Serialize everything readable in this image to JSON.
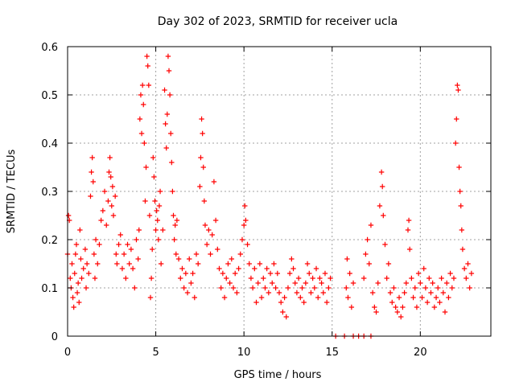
{
  "chart_data": {
    "type": "scatter",
    "title": "Day 302 of 2023, SRMTID for receiver ucla",
    "xlabel": "GPS time / hours",
    "ylabel": "SRMTID / TECUs",
    "xlim": [
      0,
      24
    ],
    "ylim": [
      0,
      0.6
    ],
    "xticks": [
      "0",
      "5",
      "10",
      "15",
      "20"
    ],
    "xtick_values": [
      0,
      5,
      10,
      15,
      20
    ],
    "yticks": [
      "0",
      "0.1",
      "0.2",
      "0.3",
      "0.4",
      "0.5",
      "0.6"
    ],
    "ytick_values": [
      0,
      0.1,
      0.2,
      0.3,
      0.4,
      0.5,
      0.6
    ],
    "grid": true,
    "marker": "+",
    "color": "#ff0000",
    "series": [
      {
        "name": "SRMTID",
        "points": [
          [
            0.0,
            0.17
          ],
          [
            0.05,
            0.25
          ],
          [
            0.1,
            0.24
          ],
          [
            0.15,
            0.12
          ],
          [
            0.2,
            0.1
          ],
          [
            0.25,
            0.15
          ],
          [
            0.3,
            0.08
          ],
          [
            0.35,
            0.06
          ],
          [
            0.4,
            0.13
          ],
          [
            0.45,
            0.17
          ],
          [
            0.5,
            0.19
          ],
          [
            0.55,
            0.09
          ],
          [
            0.6,
            0.11
          ],
          [
            0.65,
            0.07
          ],
          [
            0.7,
            0.22
          ],
          [
            0.75,
            0.16
          ],
          [
            0.8,
            0.12
          ],
          [
            0.9,
            0.14
          ],
          [
            1.0,
            0.18
          ],
          [
            1.05,
            0.1
          ],
          [
            1.1,
            0.15
          ],
          [
            1.2,
            0.13
          ],
          [
            1.3,
            0.29
          ],
          [
            1.35,
            0.34
          ],
          [
            1.4,
            0.37
          ],
          [
            1.45,
            0.32
          ],
          [
            1.5,
            0.17
          ],
          [
            1.55,
            0.12
          ],
          [
            1.6,
            0.2
          ],
          [
            1.7,
            0.15
          ],
          [
            1.8,
            0.19
          ],
          [
            1.9,
            0.24
          ],
          [
            2.0,
            0.26
          ],
          [
            2.1,
            0.3
          ],
          [
            2.2,
            0.23
          ],
          [
            2.3,
            0.28
          ],
          [
            2.35,
            0.34
          ],
          [
            2.4,
            0.37
          ],
          [
            2.45,
            0.33
          ],
          [
            2.5,
            0.27
          ],
          [
            2.55,
            0.31
          ],
          [
            2.6,
            0.25
          ],
          [
            2.7,
            0.29
          ],
          [
            2.75,
            0.17
          ],
          [
            2.8,
            0.15
          ],
          [
            2.9,
            0.19
          ],
          [
            3.0,
            0.21
          ],
          [
            3.1,
            0.14
          ],
          [
            3.2,
            0.17
          ],
          [
            3.3,
            0.12
          ],
          [
            3.4,
            0.19
          ],
          [
            3.5,
            0.15
          ],
          [
            3.6,
            0.18
          ],
          [
            3.7,
            0.14
          ],
          [
            3.8,
            0.1
          ],
          [
            3.9,
            0.2
          ],
          [
            4.0,
            0.16
          ],
          [
            4.05,
            0.22
          ],
          [
            4.1,
            0.45
          ],
          [
            4.15,
            0.5
          ],
          [
            4.2,
            0.42
          ],
          [
            4.25,
            0.52
          ],
          [
            4.3,
            0.48
          ],
          [
            4.35,
            0.4
          ],
          [
            4.4,
            0.28
          ],
          [
            4.45,
            0.35
          ],
          [
            4.5,
            0.58
          ],
          [
            4.55,
            0.56
          ],
          [
            4.6,
            0.52
          ],
          [
            4.65,
            0.25
          ],
          [
            4.7,
            0.08
          ],
          [
            4.75,
            0.12
          ],
          [
            4.8,
            0.18
          ],
          [
            4.85,
            0.37
          ],
          [
            4.9,
            0.33
          ],
          [
            4.95,
            0.28
          ],
          [
            5.0,
            0.22
          ],
          [
            5.05,
            0.26
          ],
          [
            5.1,
            0.24
          ],
          [
            5.15,
            0.2
          ],
          [
            5.2,
            0.27
          ],
          [
            5.25,
            0.3
          ],
          [
            5.3,
            0.15
          ],
          [
            5.4,
            0.22
          ],
          [
            5.5,
            0.51
          ],
          [
            5.55,
            0.44
          ],
          [
            5.6,
            0.39
          ],
          [
            5.65,
            0.46
          ],
          [
            5.7,
            0.58
          ],
          [
            5.75,
            0.55
          ],
          [
            5.8,
            0.5
          ],
          [
            5.85,
            0.42
          ],
          [
            5.9,
            0.36
          ],
          [
            5.95,
            0.3
          ],
          [
            6.0,
            0.25
          ],
          [
            6.05,
            0.2
          ],
          [
            6.1,
            0.23
          ],
          [
            6.15,
            0.17
          ],
          [
            6.2,
            0.24
          ],
          [
            6.3,
            0.16
          ],
          [
            6.4,
            0.12
          ],
          [
            6.5,
            0.14
          ],
          [
            6.6,
            0.1
          ],
          [
            6.7,
            0.13
          ],
          [
            6.8,
            0.09
          ],
          [
            6.9,
            0.16
          ],
          [
            7.0,
            0.11
          ],
          [
            7.1,
            0.13
          ],
          [
            7.2,
            0.08
          ],
          [
            7.3,
            0.17
          ],
          [
            7.4,
            0.15
          ],
          [
            7.5,
            0.31
          ],
          [
            7.55,
            0.37
          ],
          [
            7.6,
            0.45
          ],
          [
            7.65,
            0.42
          ],
          [
            7.7,
            0.35
          ],
          [
            7.75,
            0.28
          ],
          [
            7.8,
            0.23
          ],
          [
            7.9,
            0.19
          ],
          [
            8.0,
            0.22
          ],
          [
            8.1,
            0.17
          ],
          [
            8.2,
            0.21
          ],
          [
            8.3,
            0.32
          ],
          [
            8.4,
            0.24
          ],
          [
            8.5,
            0.18
          ],
          [
            8.6,
            0.14
          ],
          [
            8.7,
            0.1
          ],
          [
            8.8,
            0.13
          ],
          [
            8.9,
            0.08
          ],
          [
            9.0,
            0.12
          ],
          [
            9.1,
            0.15
          ],
          [
            9.2,
            0.11
          ],
          [
            9.3,
            0.16
          ],
          [
            9.4,
            0.1
          ],
          [
            9.5,
            0.13
          ],
          [
            9.6,
            0.09
          ],
          [
            9.7,
            0.14
          ],
          [
            9.8,
            0.17
          ],
          [
            9.9,
            0.2
          ],
          [
            10.0,
            0.23
          ],
          [
            10.05,
            0.27
          ],
          [
            10.1,
            0.24
          ],
          [
            10.2,
            0.19
          ],
          [
            10.3,
            0.15
          ],
          [
            10.4,
            0.12
          ],
          [
            10.5,
            0.1
          ],
          [
            10.6,
            0.14
          ],
          [
            10.7,
            0.07
          ],
          [
            10.8,
            0.11
          ],
          [
            10.9,
            0.15
          ],
          [
            11.0,
            0.08
          ],
          [
            11.1,
            0.12
          ],
          [
            11.2,
            0.1
          ],
          [
            11.3,
            0.14
          ],
          [
            11.4,
            0.09
          ],
          [
            11.5,
            0.13
          ],
          [
            11.6,
            0.11
          ],
          [
            11.7,
            0.15
          ],
          [
            11.8,
            0.1
          ],
          [
            11.9,
            0.13
          ],
          [
            12.0,
            0.09
          ],
          [
            12.1,
            0.07
          ],
          [
            12.2,
            0.05
          ],
          [
            12.3,
            0.08
          ],
          [
            12.4,
            0.04
          ],
          [
            12.5,
            0.1
          ],
          [
            12.6,
            0.13
          ],
          [
            12.7,
            0.16
          ],
          [
            12.8,
            0.14
          ],
          [
            12.9,
            0.11
          ],
          [
            13.0,
            0.09
          ],
          [
            13.1,
            0.12
          ],
          [
            13.2,
            0.08
          ],
          [
            13.3,
            0.1
          ],
          [
            13.4,
            0.07
          ],
          [
            13.5,
            0.11
          ],
          [
            13.6,
            0.15
          ],
          [
            13.7,
            0.13
          ],
          [
            13.8,
            0.09
          ],
          [
            13.9,
            0.12
          ],
          [
            14.0,
            0.1
          ],
          [
            14.1,
            0.14
          ],
          [
            14.2,
            0.08
          ],
          [
            14.3,
            0.12
          ],
          [
            14.4,
            0.11
          ],
          [
            14.5,
            0.09
          ],
          [
            14.6,
            0.13
          ],
          [
            14.7,
            0.07
          ],
          [
            14.8,
            0.1
          ],
          [
            14.9,
            0.12
          ],
          [
            15.2,
            0.0
          ],
          [
            15.7,
            0.0
          ],
          [
            16.2,
            0.0
          ],
          [
            16.5,
            0.0
          ],
          [
            16.8,
            0.0
          ],
          [
            17.2,
            0.0
          ],
          [
            15.8,
            0.1
          ],
          [
            15.85,
            0.16
          ],
          [
            15.9,
            0.08
          ],
          [
            16.0,
            0.13
          ],
          [
            16.1,
            0.06
          ],
          [
            16.2,
            0.11
          ],
          [
            16.8,
            0.12
          ],
          [
            16.9,
            0.17
          ],
          [
            17.0,
            0.2
          ],
          [
            17.1,
            0.15
          ],
          [
            17.2,
            0.23
          ],
          [
            17.3,
            0.09
          ],
          [
            17.4,
            0.06
          ],
          [
            17.5,
            0.05
          ],
          [
            17.6,
            0.11
          ],
          [
            17.7,
            0.27
          ],
          [
            17.8,
            0.34
          ],
          [
            17.85,
            0.31
          ],
          [
            17.9,
            0.25
          ],
          [
            18.0,
            0.19
          ],
          [
            18.1,
            0.12
          ],
          [
            18.2,
            0.15
          ],
          [
            18.3,
            0.09
          ],
          [
            18.4,
            0.07
          ],
          [
            18.5,
            0.1
          ],
          [
            18.6,
            0.06
          ],
          [
            18.7,
            0.05
          ],
          [
            18.8,
            0.08
          ],
          [
            18.9,
            0.04
          ],
          [
            19.0,
            0.06
          ],
          [
            19.1,
            0.09
          ],
          [
            19.2,
            0.11
          ],
          [
            19.3,
            0.22
          ],
          [
            19.35,
            0.24
          ],
          [
            19.4,
            0.18
          ],
          [
            19.5,
            0.12
          ],
          [
            19.6,
            0.08
          ],
          [
            19.7,
            0.1
          ],
          [
            19.8,
            0.06
          ],
          [
            19.9,
            0.13
          ],
          [
            20.0,
            0.11
          ],
          [
            20.1,
            0.08
          ],
          [
            20.2,
            0.14
          ],
          [
            20.3,
            0.1
          ],
          [
            20.4,
            0.07
          ],
          [
            20.5,
            0.12
          ],
          [
            20.6,
            0.09
          ],
          [
            20.7,
            0.11
          ],
          [
            20.8,
            0.06
          ],
          [
            20.9,
            0.08
          ],
          [
            21.0,
            0.1
          ],
          [
            21.1,
            0.07
          ],
          [
            21.2,
            0.12
          ],
          [
            21.3,
            0.09
          ],
          [
            21.4,
            0.05
          ],
          [
            21.5,
            0.11
          ],
          [
            21.6,
            0.08
          ],
          [
            21.7,
            0.13
          ],
          [
            21.8,
            0.1
          ],
          [
            21.9,
            0.12
          ],
          [
            22.0,
            0.4
          ],
          [
            22.05,
            0.45
          ],
          [
            22.1,
            0.52
          ],
          [
            22.15,
            0.51
          ],
          [
            22.2,
            0.35
          ],
          [
            22.25,
            0.3
          ],
          [
            22.3,
            0.27
          ],
          [
            22.35,
            0.22
          ],
          [
            22.4,
            0.18
          ],
          [
            22.5,
            0.14
          ],
          [
            22.6,
            0.12
          ],
          [
            22.7,
            0.15
          ],
          [
            22.8,
            0.1
          ],
          [
            22.9,
            0.13
          ]
        ]
      }
    ]
  }
}
